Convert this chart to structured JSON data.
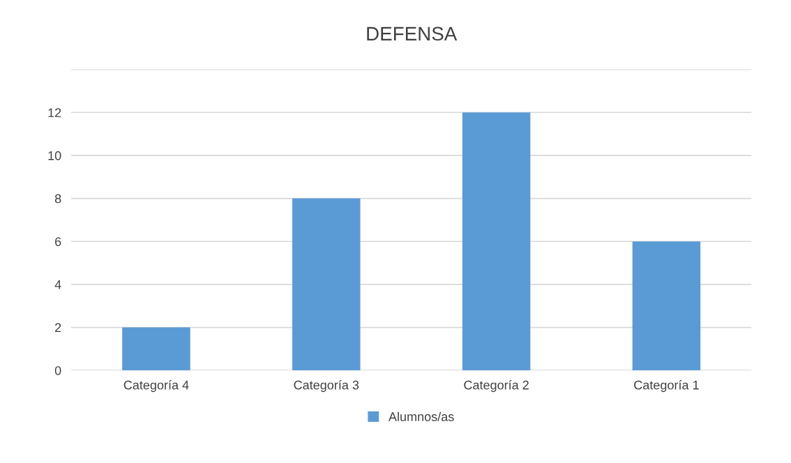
{
  "chart_data": {
    "type": "bar",
    "title": "DEFENSA",
    "categories": [
      "Categoría 4",
      "Categoría 3",
      "Categoría 2",
      "Categoría 1"
    ],
    "series": [
      {
        "name": "Alumnos/as",
        "color": "#5b9bd5",
        "values": [
          2,
          8,
          12,
          6
        ]
      }
    ],
    "ylim": [
      0,
      14
    ],
    "yticks": [
      0,
      2,
      4,
      6,
      8,
      10,
      12,
      {
        "value": 14,
        "label": null
      }
    ],
    "grid": "y",
    "legend": "bottom"
  }
}
